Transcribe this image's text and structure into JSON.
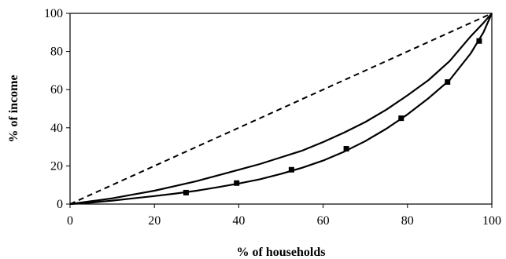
{
  "chart_data": {
    "type": "line",
    "title": "",
    "xlabel": "% of households",
    "ylabel": "% of income",
    "xlim": [
      0,
      100
    ],
    "ylim": [
      0,
      100
    ],
    "xticks": [
      0,
      20,
      40,
      60,
      80,
      100
    ],
    "yticks": [
      0,
      20,
      40,
      60,
      80,
      100
    ],
    "grid": false,
    "legend": "none",
    "series": [
      {
        "style": "dashed",
        "color": "#000000",
        "x": [
          0,
          100
        ],
        "y": [
          0,
          100
        ]
      },
      {
        "style": "solid",
        "color": "#000000",
        "x": [
          0,
          5,
          10,
          15,
          20,
          25,
          30,
          35,
          40,
          45,
          50,
          55,
          60,
          65,
          70,
          75,
          80,
          85,
          90,
          95,
          98,
          100
        ],
        "y": [
          0,
          1.5,
          3,
          5,
          7,
          9.5,
          12,
          15,
          18,
          21,
          24.5,
          28,
          32.5,
          37.5,
          43,
          49.5,
          57,
          65,
          75,
          88,
          95,
          100
        ]
      },
      {
        "style": "solid",
        "color": "#000000",
        "marker": "square",
        "x": [
          0,
          5,
          10,
          15,
          20,
          25,
          30,
          35,
          40,
          45,
          50,
          55,
          60,
          65,
          70,
          75,
          80,
          85,
          90,
          95,
          98,
          100
        ],
        "y": [
          0,
          0.8,
          1.8,
          3,
          4.2,
          5.5,
          7,
          8.8,
          10.8,
          13,
          15.8,
          19,
          22.8,
          27.5,
          33,
          39.5,
          47,
          55.5,
          65,
          79,
          90,
          100
        ],
        "marker_points": [
          [
            27.5,
            6
          ],
          [
            39.5,
            11
          ],
          [
            52.5,
            18
          ],
          [
            65.5,
            29
          ],
          [
            78.5,
            45
          ],
          [
            89.5,
            64
          ],
          [
            97,
            85.5
          ]
        ]
      }
    ]
  }
}
